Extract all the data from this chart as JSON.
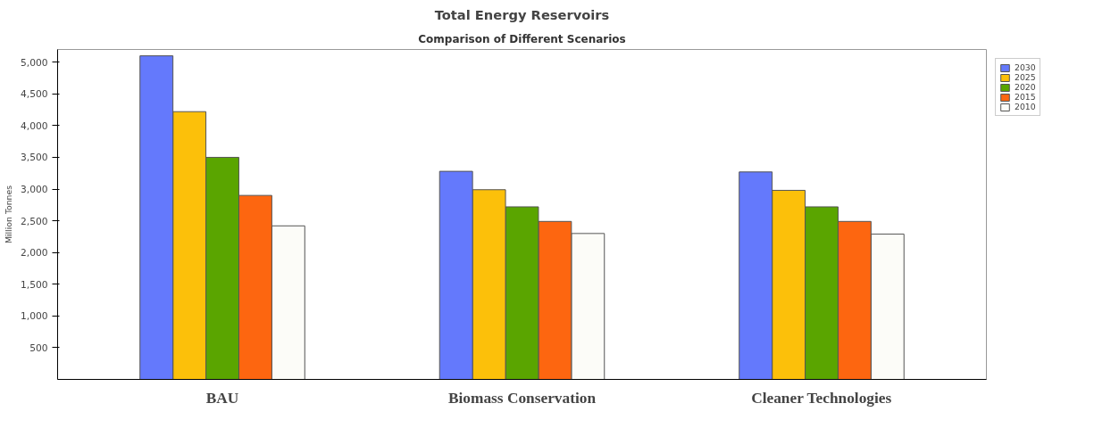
{
  "chart_data": {
    "type": "bar",
    "title": "Total Energy Reservoirs",
    "subtitle": "Comparison of Different Scenarios",
    "ylabel": "Million Tonnes",
    "categories": [
      "BAU",
      "Biomass Conservation",
      "Cleaner Technologies"
    ],
    "series": [
      {
        "name": "2010",
        "color": "#fcfcf8",
        "values": [
          2420,
          2300,
          2290
        ]
      },
      {
        "name": "2015",
        "color": "#fd6610",
        "values": [
          2900,
          2490,
          2490
        ]
      },
      {
        "name": "2020",
        "color": "#5aa500",
        "values": [
          3500,
          2720,
          2720
        ]
      },
      {
        "name": "2025",
        "color": "#fcc00a",
        "values": [
          4220,
          2990,
          2980
        ]
      },
      {
        "name": "2030",
        "color": "#6479fc",
        "values": [
          5100,
          3280,
          3270
        ]
      }
    ],
    "ylim": [
      0,
      5200
    ],
    "yticks": [
      {
        "value": 500,
        "label": "500"
      },
      {
        "value": 1000,
        "label": "1,000"
      },
      {
        "value": 1500,
        "label": "1,500"
      },
      {
        "value": 2000,
        "label": "2,000"
      },
      {
        "value": 2500,
        "label": "2,500"
      },
      {
        "value": 3000,
        "label": "3,000"
      },
      {
        "value": 3500,
        "label": "3,500"
      },
      {
        "value": 4000,
        "label": "4,000"
      },
      {
        "value": 4500,
        "label": "4,500"
      },
      {
        "value": 5000,
        "label": "5,000"
      }
    ],
    "grid": false,
    "legend": "top right"
  }
}
